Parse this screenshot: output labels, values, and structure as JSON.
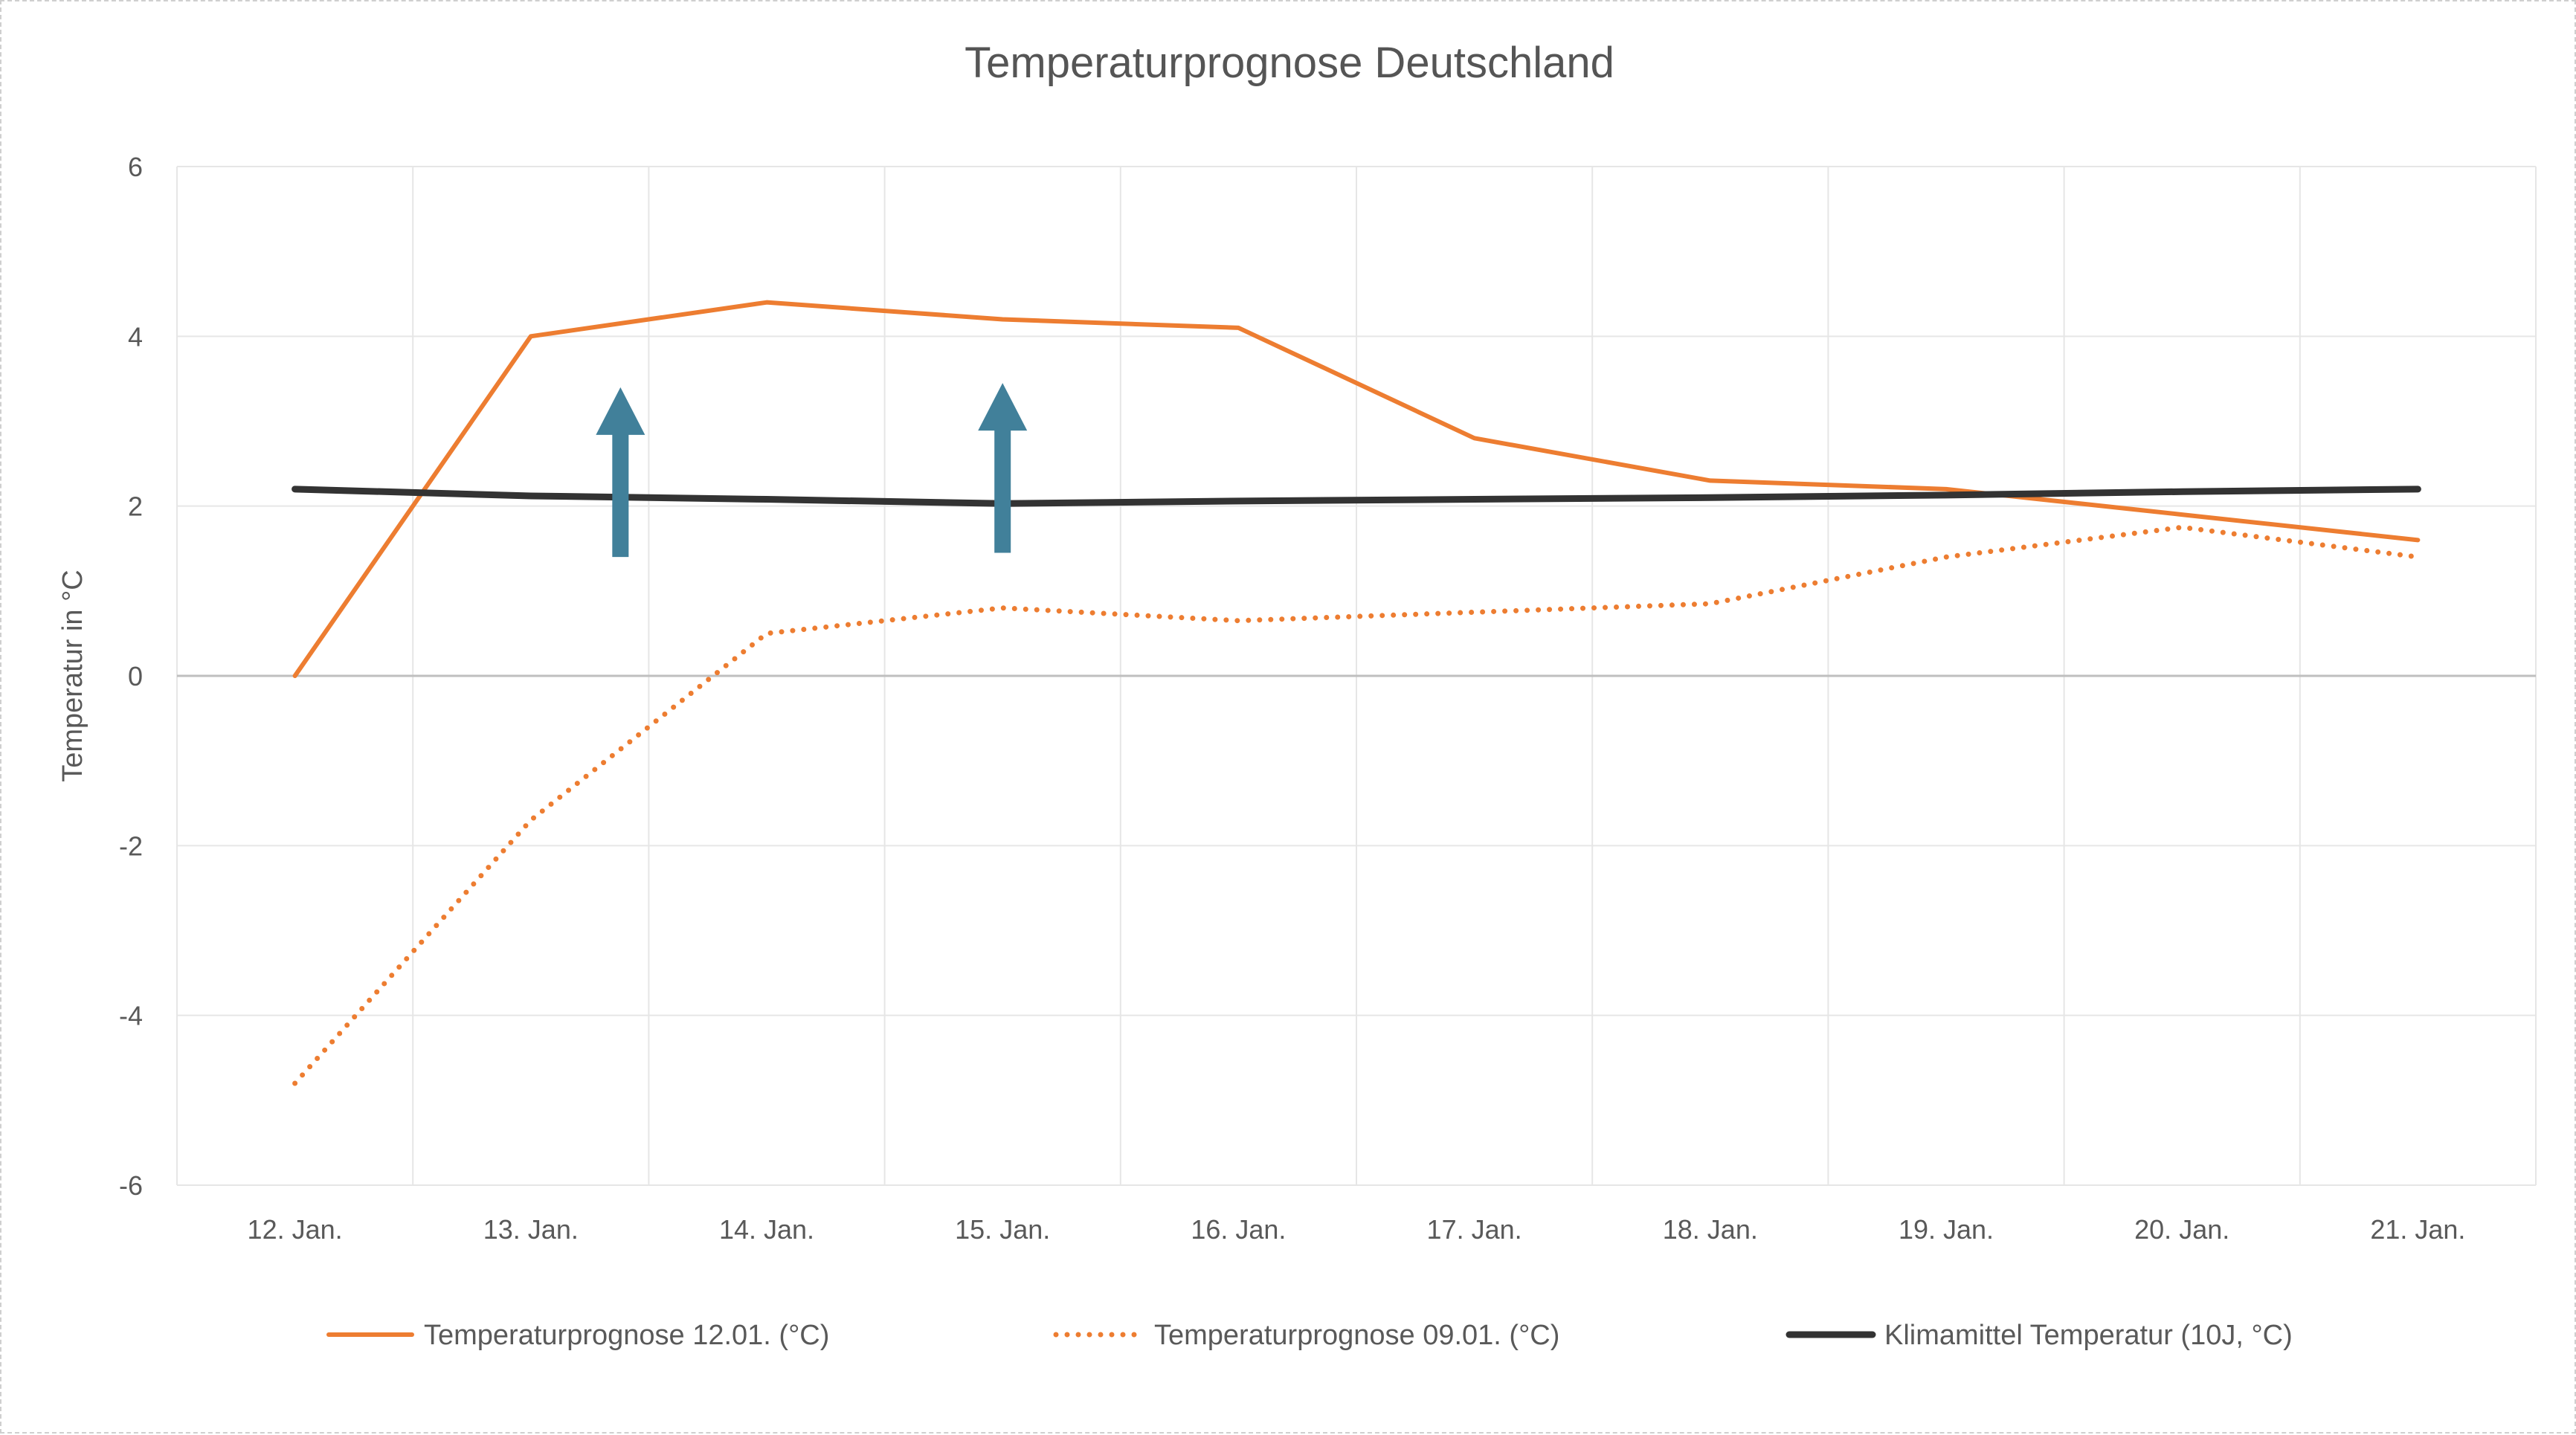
{
  "chart_data": {
    "type": "line",
    "title": "Temperaturprognose Deutschland",
    "xlabel": "",
    "ylabel": "Temperatur in °C",
    "ylim": [
      -6,
      6
    ],
    "yticks": [
      -6,
      -4,
      -2,
      0,
      2,
      4,
      6
    ],
    "categories": [
      "12. Jan.",
      "13. Jan.",
      "14. Jan.",
      "15. Jan.",
      "16. Jan.",
      "17. Jan.",
      "18. Jan.",
      "19. Jan.",
      "20. Jan.",
      "21. Jan."
    ],
    "grid": true,
    "legend": "bottom",
    "series": [
      {
        "name": "Temperaturprognose 12.01. (°C)",
        "values": [
          0,
          4.0,
          4.4,
          4.2,
          4.1,
          2.8,
          2.3,
          2.2,
          1.9,
          1.6
        ],
        "color": "#ED7D31",
        "style": "solid"
      },
      {
        "name": "Temperaturprognose 09.01. (°C)",
        "values": [
          -4.8,
          -1.7,
          0.5,
          0.8,
          0.65,
          0.75,
          0.85,
          1.4,
          1.75,
          1.4
        ],
        "color": "#ED7D31",
        "style": "dotted"
      },
      {
        "name": "Klimamittel Temperatur (10J, °C)",
        "values": [
          2.2,
          2.12,
          2.08,
          2.03,
          2.06,
          2.08,
          2.1,
          2.13,
          2.17,
          2.2
        ],
        "color": "#333333",
        "style": "solid"
      }
    ],
    "annotations": [
      {
        "type": "arrow-up",
        "x_between": [
          "13. Jan.",
          "14. Jan."
        ],
        "x_fraction": 0.38,
        "from": 1.4,
        "to": 3.4,
        "color": "#41809A"
      },
      {
        "type": "arrow-up",
        "x": "15. Jan.",
        "from": 1.45,
        "to": 3.45,
        "color": "#41809A"
      }
    ]
  }
}
